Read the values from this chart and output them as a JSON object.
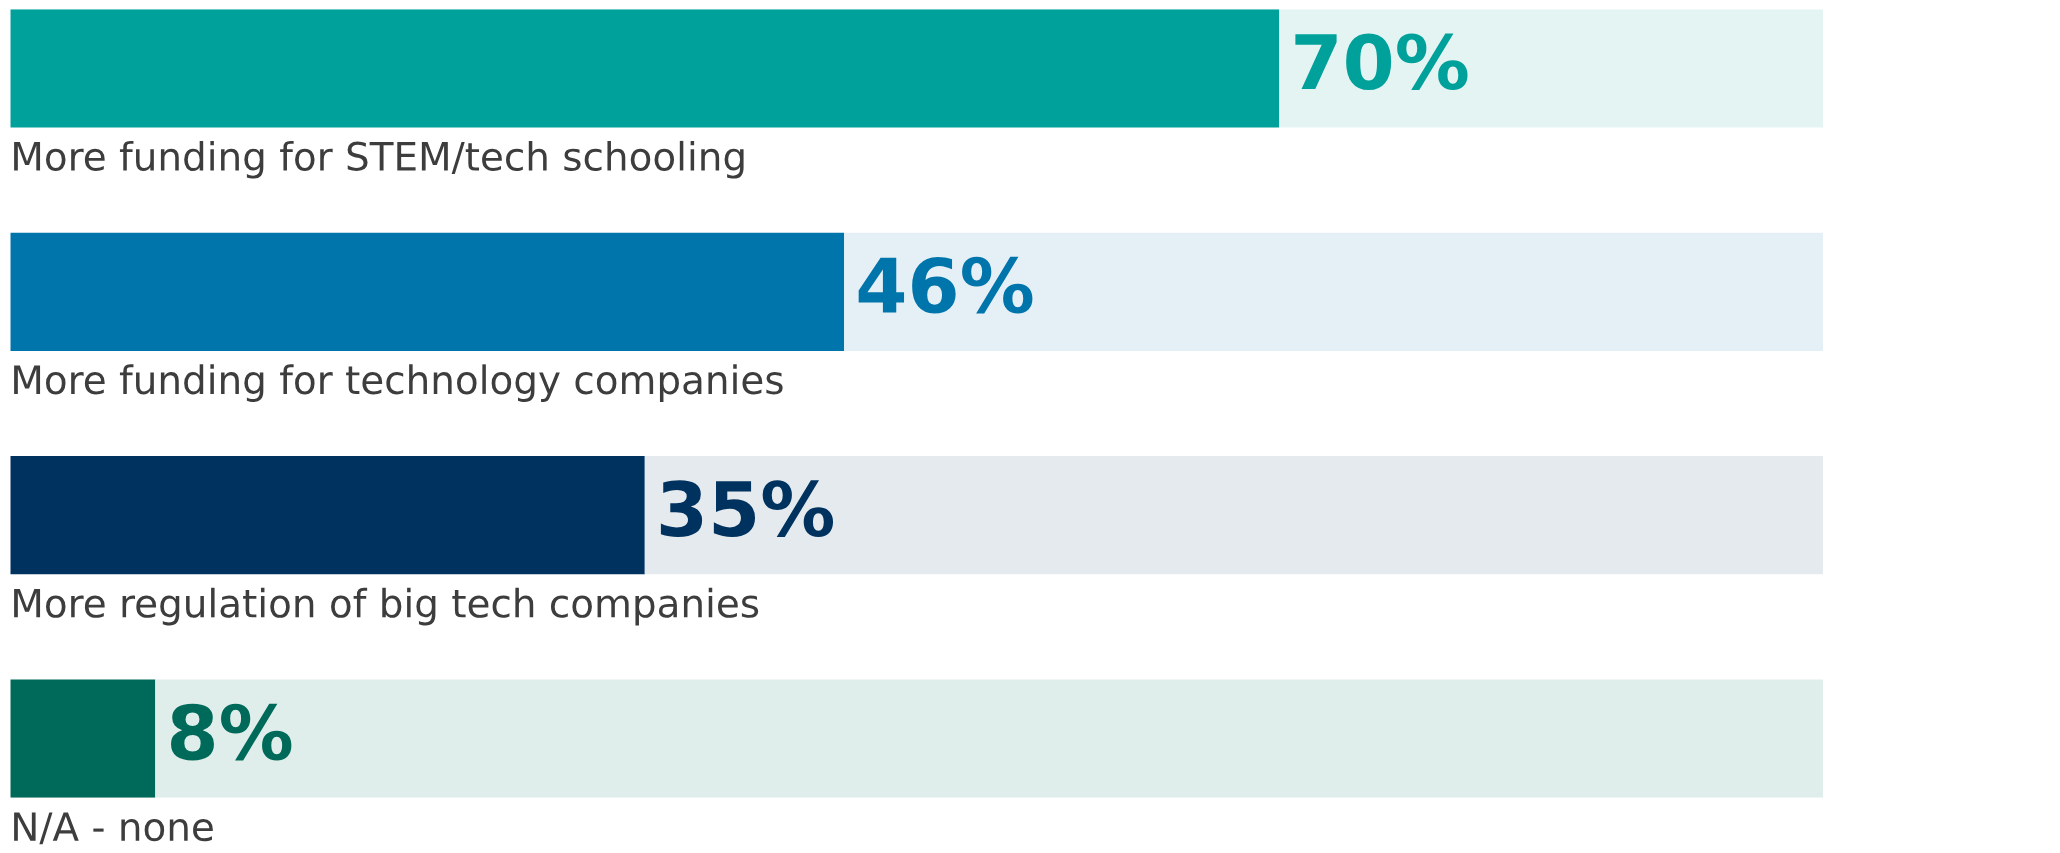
{
  "chart_data": {
    "type": "bar",
    "orientation": "horizontal",
    "stacked": true,
    "categories": [
      "More funding for STEM/tech schooling",
      "More funding for technology companies",
      "More regulation of big tech companies",
      "N/A - none"
    ],
    "series": [
      {
        "colors": [
          "#00a19a",
          "#0075ab",
          "#00325f",
          "#006a5a"
        ],
        "values": [
          70,
          46,
          35,
          8
        ],
        "value_labels": [
          "70%",
          "46%",
          "35%",
          "8%"
        ]
      },
      {
        "colors": [
          "#e3f4f3",
          "#e5f0f6",
          "#e5eaee",
          "#e0eeeb"
        ],
        "values": [
          30,
          54,
          65,
          92
        ]
      }
    ],
    "xlim": [
      0,
      100
    ],
    "tick_labels": false,
    "legend": false
  }
}
